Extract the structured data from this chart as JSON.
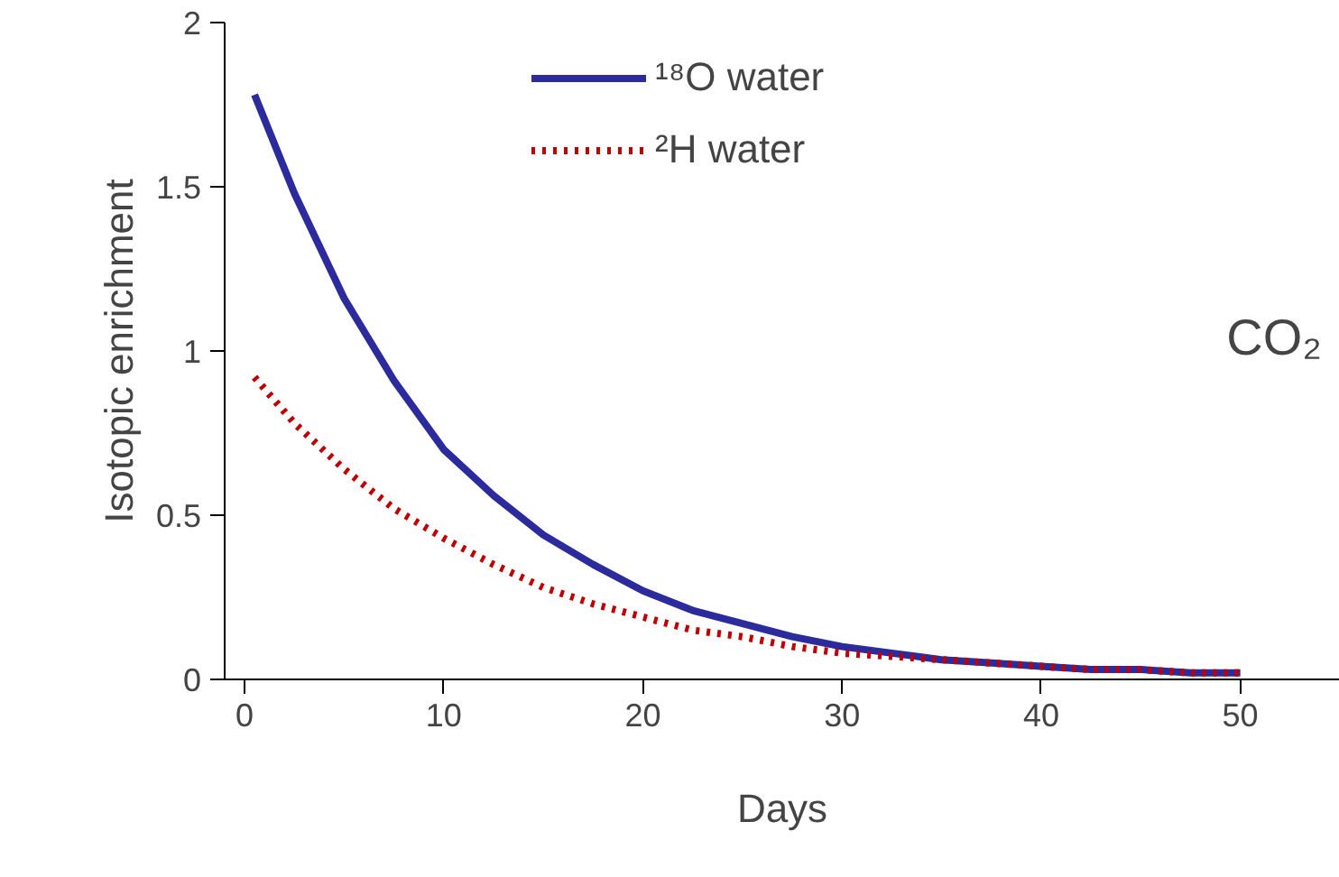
{
  "chart_data": {
    "type": "line",
    "xlabel": "Days",
    "ylabel": "Isotopic enrichment",
    "x": [
      0.5,
      2.5,
      5,
      7.5,
      10,
      12.5,
      15,
      17.5,
      20,
      22.5,
      25,
      27.5,
      30,
      32.5,
      35,
      37.5,
      40,
      42.5,
      45,
      47.5,
      50
    ],
    "series": [
      {
        "name": "¹⁸O water",
        "color": "#2b2b9e",
        "line_style": "solid",
        "values": [
          1.78,
          1.48,
          1.16,
          0.91,
          0.7,
          0.56,
          0.44,
          0.35,
          0.27,
          0.21,
          0.17,
          0.13,
          0.1,
          0.08,
          0.06,
          0.05,
          0.04,
          0.03,
          0.03,
          0.02,
          0.02
        ]
      },
      {
        "name": "²H water",
        "color": "#c00000",
        "line_style": "dotted",
        "values": [
          0.92,
          0.78,
          0.64,
          0.52,
          0.43,
          0.35,
          0.28,
          0.23,
          0.19,
          0.15,
          0.13,
          0.1,
          0.08,
          0.07,
          0.06,
          0.05,
          0.04,
          0.03,
          0.03,
          0.02,
          0.02
        ]
      }
    ],
    "xlim": [
      -1,
      55
    ],
    "ylim": [
      0,
      2
    ],
    "xticks": [
      0,
      10,
      20,
      30,
      40,
      50
    ],
    "yticks": [
      0,
      0.5,
      1,
      1.5,
      2
    ],
    "grid": false,
    "legend": "top",
    "marker": "none",
    "annotations": [
      "CO₂"
    ]
  }
}
